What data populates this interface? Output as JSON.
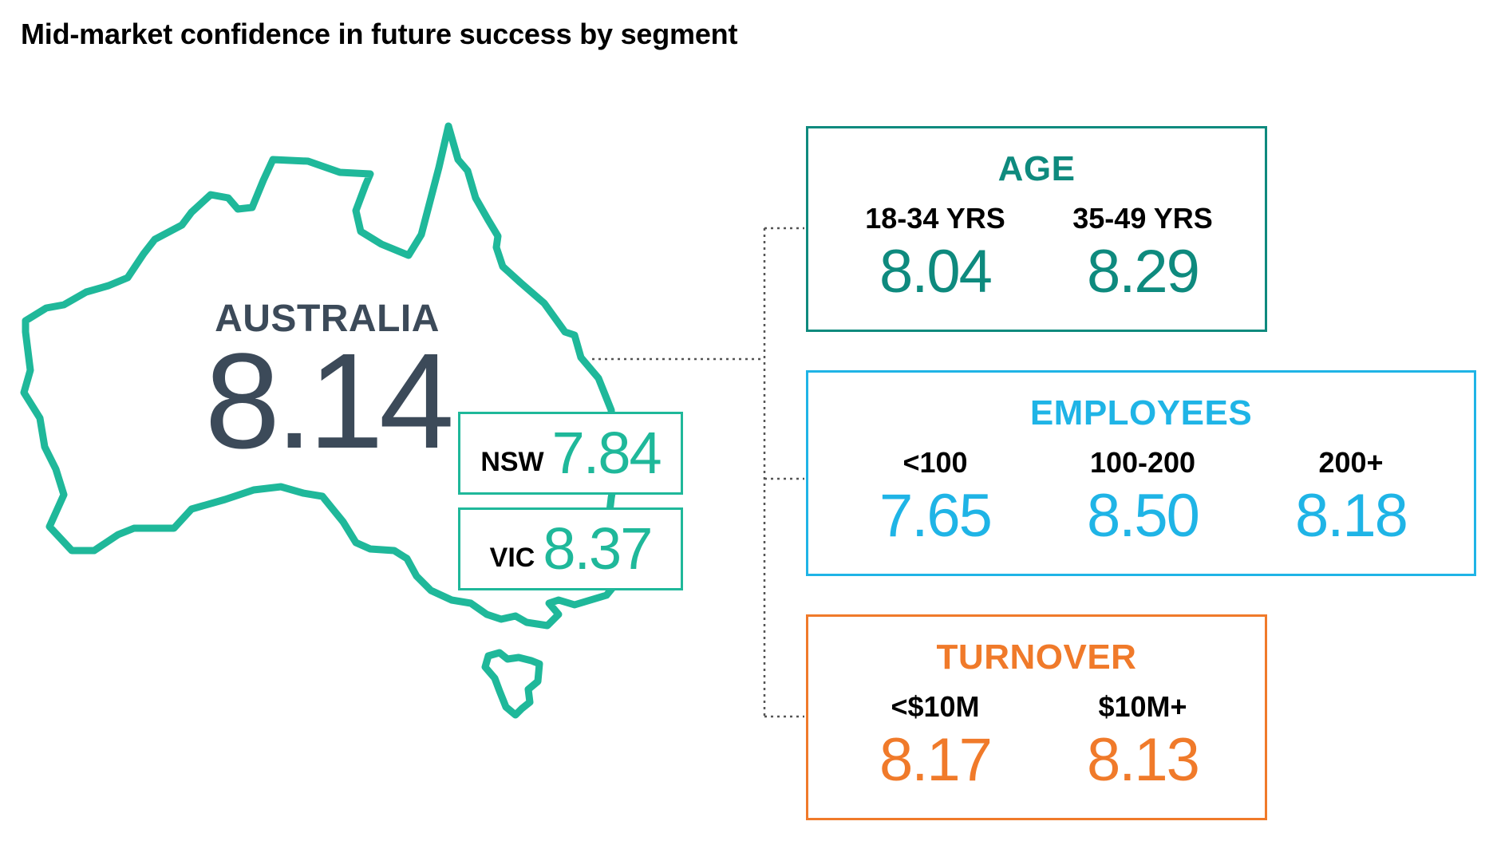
{
  "title": "Mid-market confidence in future success by segment",
  "colors": {
    "map_outline": "#1fb89a",
    "australia_text": "#3c4a59",
    "age": "#0e8a7e",
    "employees": "#1fb4e6",
    "turnover": "#f07a2a",
    "connector": "#555555"
  },
  "australia": {
    "label": "AUSTRALIA",
    "value": "8.14"
  },
  "states": [
    {
      "code": "NSW",
      "value": "7.84"
    },
    {
      "code": "VIC",
      "value": "8.37"
    }
  ],
  "segments": {
    "age": {
      "title": "AGE",
      "items": [
        {
          "label": "18-34 YRS",
          "value": "8.04"
        },
        {
          "label": "35-49 YRS",
          "value": "8.29"
        }
      ]
    },
    "employees": {
      "title": "EMPLOYEES",
      "items": [
        {
          "label": "<100",
          "value": "7.65"
        },
        {
          "label": "100-200",
          "value": "8.50"
        },
        {
          "label": "200+",
          "value": "8.18"
        }
      ]
    },
    "turnover": {
      "title": "TURNOVER",
      "items": [
        {
          "label": "<$10M",
          "value": "8.17"
        },
        {
          "label": "$10M+",
          "value": "8.13"
        }
      ]
    }
  }
}
